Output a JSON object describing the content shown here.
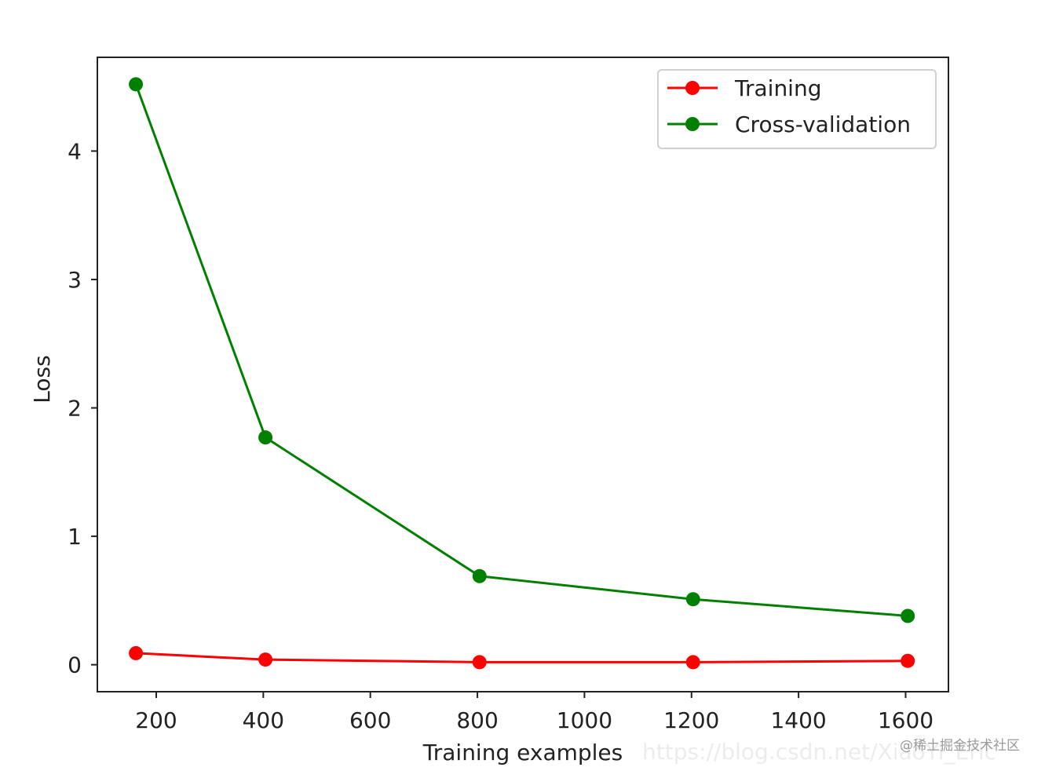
{
  "chart_data": {
    "type": "line",
    "xlabel": "Training examples",
    "ylabel": "Loss",
    "xlim": [
      90,
      1680
    ],
    "ylim": [
      -0.21,
      4.73
    ],
    "x_ticks": [
      200,
      400,
      600,
      800,
      1000,
      1200,
      1400,
      1600
    ],
    "y_ticks": [
      0,
      1,
      2,
      3,
      4
    ],
    "legend_position": "top-right",
    "grid": false,
    "x": [
      162,
      404,
      804,
      1203,
      1604
    ],
    "series": [
      {
        "name": "Training",
        "color": "#ff0000",
        "marker": "circle",
        "values": [
          0.09,
          0.04,
          0.02,
          0.02,
          0.03
        ]
      },
      {
        "name": "Cross-validation",
        "color": "#008000",
        "marker": "circle",
        "values": [
          4.52,
          1.77,
          0.69,
          0.51,
          0.38
        ]
      }
    ]
  },
  "watermark": {
    "url": "https://blog.csdn.net/XiaoYi_Eric",
    "site": "@稀土掘金技术社区"
  }
}
